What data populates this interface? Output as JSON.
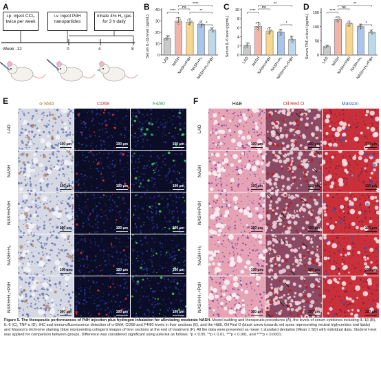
{
  "panelA": {
    "label": "A",
    "box1": "i.p. inject CCl₄ twice per week",
    "box2": "i.v. inject PdH nanoparticles",
    "box3": "inhale 4% H₂ gas for 3 h daily",
    "timeline": [
      "Week -12",
      "0",
      "4",
      "8"
    ]
  },
  "charts": [
    {
      "label": "B",
      "chart_data": {
        "type": "bar",
        "categories": [
          "LAD",
          "NASH",
          "NASH+PdH",
          "NASH+H₂",
          "NASH+H₂+PdH"
        ],
        "values": [
          15,
          30,
          29,
          27,
          22
        ],
        "errors": [
          2,
          3,
          3,
          3,
          2
        ],
        "ylabel": "Serum IL-1β level (pg/mL)",
        "yticks": [
          0,
          10,
          20,
          30,
          40
        ],
        "ylim": [
          0,
          40
        ],
        "colors": [
          "#c9c9c9",
          "#f1b4a8",
          "#f7d78f",
          "#a9c6ea",
          "#bcd8ec"
        ],
        "sig": [
          {
            "from": 0,
            "to": 1,
            "text": "****",
            "level": 0
          },
          {
            "from": 1,
            "to": 2,
            "text": "ns",
            "level": 1
          },
          {
            "from": 1,
            "to": 4,
            "text": "****",
            "level": 2
          },
          {
            "from": 2,
            "to": 4,
            "text": "**",
            "level": 0
          },
          {
            "from": 3,
            "to": 4,
            "text": "*",
            "level": -1
          }
        ]
      }
    },
    {
      "label": "C",
      "chart_data": {
        "type": "bar",
        "categories": [
          "LAD",
          "NASH",
          "NASH+PdH",
          "NASH+H₂",
          "NASH+H₂+PdH"
        ],
        "values": [
          2.1,
          6.3,
          5.3,
          5.0,
          3.4
        ],
        "errors": [
          0.6,
          0.9,
          0.8,
          0.7,
          0.8
        ],
        "ylabel": "Serum IL-6 level (pg/mL)",
        "yticks": [
          0,
          2,
          4,
          6,
          8,
          10
        ],
        "ylim": [
          0,
          10
        ],
        "colors": [
          "#c9c9c9",
          "#f1b4a8",
          "#f7d78f",
          "#a9c6ea",
          "#bcd8ec"
        ],
        "sig": [
          {
            "from": 0,
            "to": 1,
            "text": "****",
            "level": 0
          },
          {
            "from": 1,
            "to": 2,
            "text": "ns",
            "level": 1
          },
          {
            "from": 1,
            "to": 4,
            "text": "**",
            "level": 2
          },
          {
            "from": 3,
            "to": 4,
            "text": "*",
            "level": -1
          }
        ]
      }
    },
    {
      "label": "D",
      "chart_data": {
        "type": "bar",
        "categories": [
          "LAD",
          "NASH",
          "NASH+PdH",
          "NASH+H₂",
          "NASH+H₂+PdH"
        ],
        "values": [
          30,
          125,
          110,
          100,
          80
        ],
        "errors": [
          5,
          10,
          10,
          9,
          8
        ],
        "ylabel": "Serum TNF-α level (pg/mL)",
        "yticks": [
          0,
          50,
          100,
          150
        ],
        "ylim": [
          0,
          160
        ],
        "colors": [
          "#c9c9c9",
          "#f1b4a8",
          "#f7d78f",
          "#a9c6ea",
          "#bcd8ec"
        ],
        "sig": [
          {
            "from": 0,
            "to": 1,
            "text": "****",
            "level": 0
          },
          {
            "from": 1,
            "to": 2,
            "text": "ns",
            "level": 1
          },
          {
            "from": 1,
            "to": 4,
            "text": "**",
            "level": 2
          },
          {
            "from": 3,
            "to": 4,
            "text": "*",
            "level": -1
          }
        ]
      }
    }
  ],
  "panelE": {
    "label": "E",
    "columns": [
      "α-SMA",
      "CD68",
      "F4/80"
    ],
    "column_colors": [
      "#b07a3a",
      "#d0312d",
      "#2fa24a"
    ],
    "rows": [
      "LAD",
      "NASH",
      "NASH+PdH",
      "NASH+H₂",
      "NASH+H₂+PdH"
    ],
    "scale": "100 μm"
  },
  "panelF": {
    "label": "F",
    "columns": [
      "H&E",
      "Oil Red O",
      "Masson"
    ],
    "column_colors": [
      "#111111",
      "#d0312d",
      "#2f5fb0"
    ],
    "rows": [
      "LAD",
      "NASH",
      "NASH+PdH",
      "NASH+H₂",
      "NASH+H₂+PdH"
    ],
    "scale": "100 μm"
  },
  "caption": {
    "title": "Figure 5. The therapeutic performances of PdH injection plus hydrogen inhalation for alleviating moderate NASH.",
    "body": " Model building and therapeutic procedures (A), the levels of serum cytokines including IL-1β (B), IL-6 (C), TNF-α (D). IHC and immunofluorescence detection of α-SMA, CD68 and F4/80 levels in liver sections (E), and the H&E, Oil Red O (black arrow towards red spots representing neutral triglycerides and lipids) and Masson's trichrome staining (blue representing collagen) images of liver sections at the end of treatment (F). All the data were presented as mean ± standard deviation (Mean ± SD) with individual data. Student t-test was applied for comparison between groups. Difference was considered significant using asterisk as follows: *p < 0.05, **p < 0.01, ***p < 0.001, and ****p < 0.0001."
  }
}
